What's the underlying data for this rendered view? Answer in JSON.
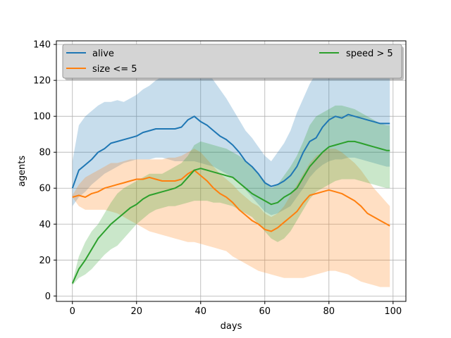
{
  "chart_data": {
    "type": "line",
    "xlabel": "days",
    "ylabel": "agents",
    "xlim": [
      -5,
      104
    ],
    "ylim": [
      -3,
      142
    ],
    "xticks": [
      0,
      20,
      40,
      60,
      80,
      100
    ],
    "yticks": [
      0,
      20,
      40,
      60,
      80,
      100,
      120,
      140
    ],
    "grid": true,
    "legend_placement": "top, two columns",
    "x": [
      0,
      2,
      4,
      6,
      8,
      10,
      12,
      14,
      16,
      18,
      20,
      22,
      24,
      26,
      28,
      30,
      32,
      34,
      36,
      38,
      40,
      42,
      44,
      46,
      48,
      50,
      52,
      54,
      56,
      58,
      60,
      62,
      64,
      66,
      68,
      70,
      72,
      74,
      76,
      78,
      80,
      82,
      84,
      86,
      88,
      90,
      92,
      94,
      96,
      98,
      99
    ],
    "series": [
      {
        "name": "alive",
        "color": "#1f77b4",
        "values": [
          60,
          70,
          73,
          76,
          80,
          82,
          85,
          86,
          87,
          88,
          89,
          91,
          92,
          93,
          93,
          93,
          93,
          94,
          98,
          100,
          97,
          95,
          92,
          89,
          87,
          84,
          80,
          75,
          72,
          68,
          63,
          61,
          62,
          64,
          67,
          72,
          80,
          86,
          88,
          94,
          98,
          100,
          99,
          101,
          100,
          99,
          98,
          97,
          96,
          96,
          96
        ],
        "upper": [
          75,
          95,
          100,
          103,
          106,
          108,
          108,
          109,
          108,
          110,
          112,
          115,
          117,
          120,
          122,
          124,
          126,
          128,
          130,
          131,
          130,
          125,
          120,
          115,
          110,
          104,
          98,
          92,
          88,
          83,
          78,
          75,
          80,
          85,
          92,
          102,
          110,
          118,
          124,
          128,
          130,
          132,
          130,
          131,
          130,
          129,
          128,
          127,
          126,
          125,
          125
        ],
        "lower": [
          50,
          55,
          58,
          62,
          65,
          68,
          70,
          72,
          74,
          75,
          76,
          76,
          76,
          77,
          77,
          76,
          75,
          75,
          75,
          75,
          74,
          73,
          72,
          70,
          68,
          66,
          63,
          59,
          55,
          51,
          47,
          45,
          46,
          48,
          50,
          55,
          60,
          66,
          70,
          73,
          75,
          76,
          76,
          77,
          77,
          76,
          75,
          74,
          73,
          72,
          72
        ]
      },
      {
        "name": "size <= 5",
        "color": "#ff7f0e",
        "values": [
          55,
          56,
          55,
          57,
          58,
          60,
          61,
          62,
          63,
          64,
          65,
          65,
          66,
          65,
          64,
          64,
          64,
          65,
          68,
          70,
          67,
          64,
          60,
          57,
          55,
          52,
          48,
          45,
          42,
          40,
          37,
          36,
          38,
          41,
          44,
          47,
          52,
          56,
          57,
          58,
          59,
          58,
          57,
          55,
          53,
          50,
          46,
          44,
          42,
          40,
          39
        ],
        "upper": [
          56,
          62,
          66,
          68,
          70,
          72,
          74,
          74,
          75,
          76,
          76,
          76,
          76,
          76,
          76,
          77,
          77,
          78,
          80,
          82,
          80,
          76,
          72,
          68,
          65,
          62,
          58,
          55,
          52,
          50,
          46,
          44,
          46,
          50,
          56,
          62,
          68,
          74,
          78,
          80,
          82,
          82,
          80,
          77,
          74,
          70,
          65,
          60,
          56,
          52,
          50
        ],
        "lower": [
          55,
          50,
          48,
          48,
          48,
          48,
          47,
          46,
          44,
          42,
          40,
          38,
          36,
          35,
          34,
          33,
          32,
          31,
          30,
          30,
          29,
          28,
          27,
          26,
          25,
          22,
          20,
          18,
          16,
          14,
          13,
          12,
          11,
          10,
          10,
          10,
          10,
          11,
          12,
          13,
          14,
          14,
          13,
          12,
          10,
          8,
          7,
          6,
          5,
          5,
          5
        ]
      },
      {
        "name": "speed > 5",
        "color": "#2ca02c",
        "values": [
          7,
          15,
          20,
          26,
          32,
          36,
          40,
          43,
          46,
          49,
          51,
          54,
          56,
          57,
          58,
          59,
          60,
          62,
          66,
          70,
          71,
          70,
          69,
          68,
          67,
          66,
          63,
          60,
          57,
          55,
          53,
          51,
          52,
          55,
          57,
          60,
          66,
          72,
          76,
          80,
          83,
          84,
          85,
          86,
          86,
          85,
          84,
          83,
          82,
          81,
          81
        ],
        "upper": [
          8,
          22,
          30,
          36,
          40,
          46,
          52,
          57,
          60,
          62,
          64,
          66,
          68,
          68,
          68,
          70,
          72,
          74,
          78,
          84,
          86,
          85,
          84,
          83,
          82,
          80,
          78,
          75,
          72,
          68,
          64,
          60,
          62,
          67,
          72,
          78,
          86,
          95,
          100,
          102,
          104,
          106,
          106,
          105,
          104,
          102,
          100,
          98,
          96,
          95,
          95
        ],
        "lower": [
          6,
          10,
          12,
          15,
          19,
          23,
          26,
          28,
          32,
          36,
          40,
          43,
          46,
          48,
          49,
          50,
          50,
          51,
          52,
          53,
          53,
          53,
          52,
          52,
          51,
          50,
          48,
          46,
          44,
          40,
          36,
          32,
          30,
          32,
          36,
          42,
          48,
          54,
          58,
          60,
          62,
          64,
          65,
          65,
          65,
          64,
          63,
          62,
          61,
          60,
          60
        ]
      }
    ]
  }
}
